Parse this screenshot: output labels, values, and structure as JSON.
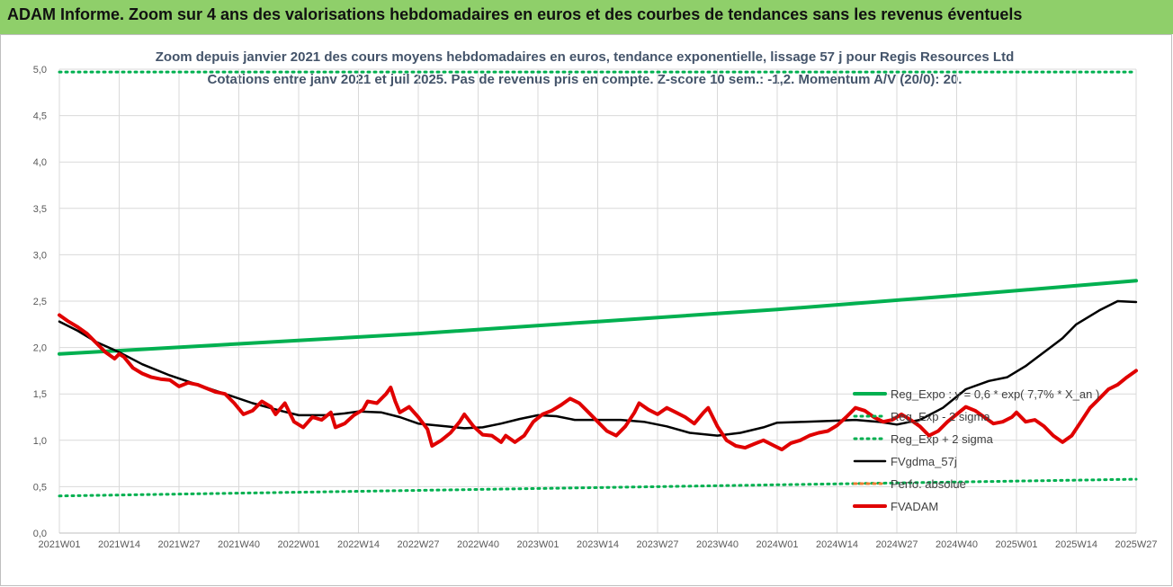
{
  "banner": {
    "title": "ADAM Informe. Zoom sur 4 ans des valorisations hebdomadaires en euros et des courbes de tendances sans les revenus éventuels"
  },
  "colors": {
    "banner_bg": "#8fcf6a",
    "reg_expo": "#00b050",
    "sigma_lines": "#00b050",
    "fvgdma": "#000000",
    "perfo_absolue": "#ed7d31",
    "fvadam": "#e00000",
    "title_text": "#44546a"
  },
  "chart_data": {
    "type": "line",
    "title": "Zoom depuis janvier 2021 des cours moyens hebdomadaires en euros, tendance exponentielle, lissage 57 j pour Regis Resources Ltd",
    "subtitle": "Cotations entre janv 2021 et juil 2025. Pas de revenus pris en compte. Z-score 10 sem.: -1,2. Momentum A/V (20/0): 20.",
    "xlabel": "",
    "ylabel": "",
    "ylim": [
      0,
      5
    ],
    "yticks": [
      "0,0",
      "0,5",
      "1,0",
      "1,5",
      "2,0",
      "2,5",
      "3,0",
      "3,5",
      "4,0",
      "4,5",
      "5,0"
    ],
    "x_week_range": [
      0,
      234
    ],
    "xticks": [
      {
        "label": "2021W01",
        "week": 0
      },
      {
        "label": "2021W14",
        "week": 13
      },
      {
        "label": "2021W27",
        "week": 26
      },
      {
        "label": "2021W40",
        "week": 39
      },
      {
        "label": "2022W01",
        "week": 52
      },
      {
        "label": "2022W14",
        "week": 65
      },
      {
        "label": "2022W27",
        "week": 78
      },
      {
        "label": "2022W40",
        "week": 91
      },
      {
        "label": "2023W01",
        "week": 104
      },
      {
        "label": "2023W14",
        "week": 117
      },
      {
        "label": "2023W27",
        "week": 130
      },
      {
        "label": "2023W40",
        "week": 143
      },
      {
        "label": "2024W01",
        "week": 156
      },
      {
        "label": "2024W14",
        "week": 169
      },
      {
        "label": "2024W27",
        "week": 182
      },
      {
        "label": "2024W40",
        "week": 195
      },
      {
        "label": "2025W01",
        "week": 208
      },
      {
        "label": "2025W14",
        "week": 221
      },
      {
        "label": "2025W27",
        "week": 234
      }
    ],
    "grid": true,
    "legend_position": "right",
    "series": [
      {
        "name": "Reg_Expo : y = 0,6 * exp( 7,7% * X_an )",
        "style": "solid-thick",
        "points": [
          [
            0,
            1.93
          ],
          [
            39,
            2.04
          ],
          [
            78,
            2.15
          ],
          [
            117,
            2.28
          ],
          [
            156,
            2.41
          ],
          [
            195,
            2.56
          ],
          [
            234,
            2.72
          ]
        ]
      },
      {
        "name": "Reg_Exp - 2 sigma",
        "style": "dotted",
        "points": [
          [
            0,
            0.4
          ],
          [
            78,
            0.46
          ],
          [
            156,
            0.52
          ],
          [
            234,
            0.58
          ]
        ]
      },
      {
        "name": "Reg_Exp + 2 sigma",
        "style": "dotted",
        "points": [
          [
            0,
            4.97
          ],
          [
            234,
            4.97
          ]
        ]
      },
      {
        "name": "FVgdma_57j",
        "style": "solid",
        "points": [
          [
            0,
            2.28
          ],
          [
            4,
            2.18
          ],
          [
            8,
            2.06
          ],
          [
            13,
            1.95
          ],
          [
            18,
            1.82
          ],
          [
            24,
            1.7
          ],
          [
            30,
            1.6
          ],
          [
            36,
            1.5
          ],
          [
            42,
            1.4
          ],
          [
            48,
            1.32
          ],
          [
            52,
            1.27
          ],
          [
            58,
            1.27
          ],
          [
            62,
            1.29
          ],
          [
            65,
            1.31
          ],
          [
            70,
            1.3
          ],
          [
            74,
            1.25
          ],
          [
            78,
            1.18
          ],
          [
            84,
            1.15
          ],
          [
            88,
            1.13
          ],
          [
            92,
            1.14
          ],
          [
            96,
            1.18
          ],
          [
            100,
            1.23
          ],
          [
            104,
            1.27
          ],
          [
            108,
            1.26
          ],
          [
            112,
            1.22
          ],
          [
            117,
            1.22
          ],
          [
            122,
            1.22
          ],
          [
            127,
            1.2
          ],
          [
            132,
            1.15
          ],
          [
            137,
            1.08
          ],
          [
            143,
            1.05
          ],
          [
            148,
            1.08
          ],
          [
            153,
            1.14
          ],
          [
            156,
            1.19
          ],
          [
            162,
            1.2
          ],
          [
            168,
            1.21
          ],
          [
            173,
            1.22
          ],
          [
            178,
            1.2
          ],
          [
            182,
            1.17
          ],
          [
            187,
            1.22
          ],
          [
            192,
            1.35
          ],
          [
            197,
            1.55
          ],
          [
            202,
            1.64
          ],
          [
            206,
            1.68
          ],
          [
            210,
            1.8
          ],
          [
            214,
            1.95
          ],
          [
            218,
            2.1
          ],
          [
            221,
            2.25
          ],
          [
            226,
            2.4
          ],
          [
            230,
            2.5
          ],
          [
            234,
            2.49
          ]
        ]
      },
      {
        "name": "Perfo. absolue",
        "style": "dotted",
        "points": []
      },
      {
        "name": "FVADAM",
        "style": "solid-thick",
        "points": [
          [
            0,
            2.35
          ],
          [
            2,
            2.28
          ],
          [
            4,
            2.22
          ],
          [
            6,
            2.15
          ],
          [
            8,
            2.05
          ],
          [
            10,
            1.95
          ],
          [
            12,
            1.88
          ],
          [
            13,
            1.93
          ],
          [
            14,
            1.9
          ],
          [
            16,
            1.78
          ],
          [
            18,
            1.72
          ],
          [
            20,
            1.68
          ],
          [
            22,
            1.66
          ],
          [
            24,
            1.65
          ],
          [
            26,
            1.58
          ],
          [
            28,
            1.62
          ],
          [
            30,
            1.6
          ],
          [
            32,
            1.56
          ],
          [
            34,
            1.52
          ],
          [
            36,
            1.5
          ],
          [
            38,
            1.4
          ],
          [
            40,
            1.28
          ],
          [
            42,
            1.32
          ],
          [
            44,
            1.42
          ],
          [
            46,
            1.36
          ],
          [
            47,
            1.28
          ],
          [
            49,
            1.4
          ],
          [
            51,
            1.2
          ],
          [
            53,
            1.14
          ],
          [
            55,
            1.25
          ],
          [
            57,
            1.22
          ],
          [
            59,
            1.3
          ],
          [
            60,
            1.14
          ],
          [
            62,
            1.18
          ],
          [
            64,
            1.27
          ],
          [
            66,
            1.33
          ],
          [
            67,
            1.42
          ],
          [
            69,
            1.4
          ],
          [
            71,
            1.5
          ],
          [
            72,
            1.57
          ],
          [
            73,
            1.42
          ],
          [
            74,
            1.3
          ],
          [
            76,
            1.36
          ],
          [
            78,
            1.25
          ],
          [
            80,
            1.12
          ],
          [
            81,
            0.94
          ],
          [
            83,
            1.0
          ],
          [
            85,
            1.08
          ],
          [
            87,
            1.2
          ],
          [
            88,
            1.28
          ],
          [
            90,
            1.15
          ],
          [
            92,
            1.06
          ],
          [
            94,
            1.05
          ],
          [
            96,
            0.98
          ],
          [
            97,
            1.05
          ],
          [
            99,
            0.98
          ],
          [
            101,
            1.05
          ],
          [
            103,
            1.2
          ],
          [
            105,
            1.28
          ],
          [
            107,
            1.32
          ],
          [
            109,
            1.38
          ],
          [
            111,
            1.45
          ],
          [
            113,
            1.4
          ],
          [
            115,
            1.3
          ],
          [
            117,
            1.2
          ],
          [
            119,
            1.1
          ],
          [
            121,
            1.05
          ],
          [
            123,
            1.15
          ],
          [
            125,
            1.3
          ],
          [
            126,
            1.4
          ],
          [
            128,
            1.33
          ],
          [
            130,
            1.28
          ],
          [
            132,
            1.35
          ],
          [
            134,
            1.3
          ],
          [
            136,
            1.25
          ],
          [
            138,
            1.18
          ],
          [
            140,
            1.3
          ],
          [
            141,
            1.35
          ],
          [
            143,
            1.15
          ],
          [
            145,
            1.0
          ],
          [
            147,
            0.94
          ],
          [
            149,
            0.92
          ],
          [
            151,
            0.96
          ],
          [
            153,
            1.0
          ],
          [
            155,
            0.95
          ],
          [
            157,
            0.9
          ],
          [
            159,
            0.97
          ],
          [
            161,
            1.0
          ],
          [
            163,
            1.05
          ],
          [
            165,
            1.08
          ],
          [
            167,
            1.1
          ],
          [
            169,
            1.16
          ],
          [
            171,
            1.25
          ],
          [
            173,
            1.35
          ],
          [
            175,
            1.32
          ],
          [
            177,
            1.25
          ],
          [
            179,
            1.2
          ],
          [
            181,
            1.22
          ],
          [
            183,
            1.28
          ],
          [
            185,
            1.22
          ],
          [
            187,
            1.15
          ],
          [
            189,
            1.05
          ],
          [
            191,
            1.1
          ],
          [
            193,
            1.2
          ],
          [
            195,
            1.28
          ],
          [
            197,
            1.36
          ],
          [
            199,
            1.32
          ],
          [
            201,
            1.25
          ],
          [
            203,
            1.18
          ],
          [
            205,
            1.2
          ],
          [
            207,
            1.25
          ],
          [
            208,
            1.3
          ],
          [
            210,
            1.2
          ],
          [
            212,
            1.22
          ],
          [
            214,
            1.15
          ],
          [
            216,
            1.05
          ],
          [
            218,
            0.98
          ],
          [
            220,
            1.05
          ],
          [
            222,
            1.2
          ],
          [
            224,
            1.35
          ],
          [
            226,
            1.45
          ],
          [
            228,
            1.55
          ],
          [
            230,
            1.6
          ],
          [
            232,
            1.68
          ],
          [
            234,
            1.75
          ]
        ]
      }
    ]
  }
}
